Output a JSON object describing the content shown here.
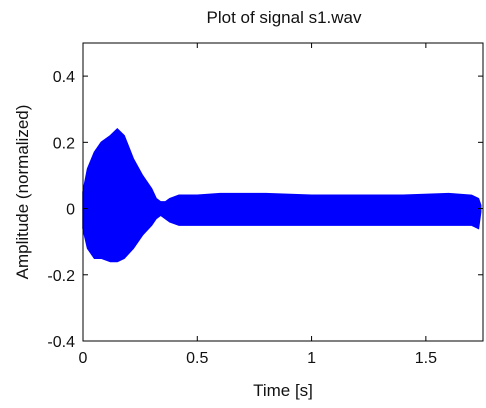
{
  "chart_data": {
    "type": "line",
    "title": "Plot of signal s1.wav",
    "xlabel": "Time [s]",
    "ylabel": "Amplitude (normalized)",
    "xlim": [
      0,
      1.75
    ],
    "ylim": [
      -0.4,
      0.5
    ],
    "xticks": [
      0,
      0.5,
      1,
      1.5
    ],
    "xtick_labels": [
      "0",
      "0.5",
      "1",
      "1.5"
    ],
    "yticks": [
      -0.4,
      -0.2,
      0,
      0.2,
      0.4
    ],
    "ytick_labels": [
      "-0.4",
      "-0.2",
      "0",
      "0.2",
      "0.4"
    ],
    "grid": false,
    "series": [
      {
        "color": "#0000ff",
        "envelope_t": [
          0,
          0.02,
          0.05,
          0.08,
          0.12,
          0.15,
          0.18,
          0.22,
          0.26,
          0.3,
          0.32,
          0.34,
          0.36,
          0.38,
          0.42,
          0.5,
          0.6,
          0.8,
          1.0,
          1.2,
          1.4,
          1.6,
          1.7,
          1.73,
          1.74
        ],
        "envelope_max": [
          0.05,
          0.12,
          0.17,
          0.2,
          0.22,
          0.24,
          0.22,
          0.15,
          0.1,
          0.06,
          0.03,
          0.02,
          0.02,
          0.03,
          0.04,
          0.04,
          0.045,
          0.045,
          0.04,
          0.04,
          0.04,
          0.045,
          0.04,
          0.03,
          0.01
        ],
        "envelope_min": [
          -0.06,
          -0.12,
          -0.15,
          -0.15,
          -0.16,
          -0.16,
          -0.15,
          -0.12,
          -0.08,
          -0.05,
          -0.03,
          -0.02,
          -0.03,
          -0.04,
          -0.05,
          -0.05,
          -0.05,
          -0.05,
          -0.05,
          -0.05,
          -0.05,
          -0.05,
          -0.05,
          -0.06,
          -0.01
        ]
      }
    ]
  }
}
